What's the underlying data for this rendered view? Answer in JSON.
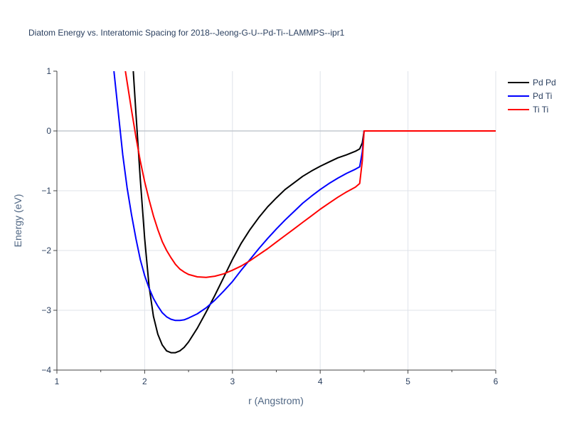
{
  "chart_data": {
    "type": "line",
    "title": "Diatom Energy vs. Interatomic Spacing for 2018--Jeong-G-U--Pd-Ti--LAMMPS--ipr1",
    "xlabel": "r (Angstrom)",
    "ylabel": "Energy (eV)",
    "xlim": [
      1,
      6
    ],
    "ylim": [
      -4,
      1
    ],
    "xticks": [
      1,
      2,
      3,
      4,
      5,
      6
    ],
    "yticks": [
      1,
      0,
      -1,
      -2,
      -3,
      -4
    ],
    "ytick_labels": [
      "1",
      "0",
      "−1",
      "−2",
      "−3",
      "−4"
    ],
    "grid": true,
    "legend_position": "top-right",
    "series": [
      {
        "name": "Pd Pd",
        "color": "#000000",
        "points": [
          [
            1.87,
            1.0
          ],
          [
            1.9,
            0.3
          ],
          [
            1.95,
            -0.8
          ],
          [
            2.0,
            -1.8
          ],
          [
            2.05,
            -2.6
          ],
          [
            2.1,
            -3.1
          ],
          [
            2.15,
            -3.4
          ],
          [
            2.2,
            -3.58
          ],
          [
            2.25,
            -3.68
          ],
          [
            2.3,
            -3.71
          ],
          [
            2.35,
            -3.71
          ],
          [
            2.4,
            -3.68
          ],
          [
            2.45,
            -3.62
          ],
          [
            2.5,
            -3.53
          ],
          [
            2.6,
            -3.3
          ],
          [
            2.7,
            -3.03
          ],
          [
            2.8,
            -2.75
          ],
          [
            2.9,
            -2.45
          ],
          [
            3.0,
            -2.15
          ],
          [
            3.1,
            -1.88
          ],
          [
            3.2,
            -1.65
          ],
          [
            3.3,
            -1.45
          ],
          [
            3.4,
            -1.27
          ],
          [
            3.5,
            -1.12
          ],
          [
            3.6,
            -0.98
          ],
          [
            3.7,
            -0.87
          ],
          [
            3.8,
            -0.76
          ],
          [
            3.9,
            -0.67
          ],
          [
            4.0,
            -0.59
          ],
          [
            4.1,
            -0.52
          ],
          [
            4.2,
            -0.45
          ],
          [
            4.3,
            -0.4
          ],
          [
            4.4,
            -0.34
          ],
          [
            4.45,
            -0.3
          ],
          [
            4.48,
            -0.2
          ],
          [
            4.5,
            0.0
          ],
          [
            6.0,
            0.0
          ]
        ]
      },
      {
        "name": "Pd Ti",
        "color": "#0000ff",
        "points": [
          [
            1.65,
            1.0
          ],
          [
            1.7,
            0.3
          ],
          [
            1.75,
            -0.4
          ],
          [
            1.8,
            -0.95
          ],
          [
            1.85,
            -1.4
          ],
          [
            1.9,
            -1.8
          ],
          [
            1.95,
            -2.15
          ],
          [
            2.0,
            -2.42
          ],
          [
            2.05,
            -2.63
          ],
          [
            2.1,
            -2.8
          ],
          [
            2.15,
            -2.93
          ],
          [
            2.2,
            -3.04
          ],
          [
            2.25,
            -3.11
          ],
          [
            2.3,
            -3.15
          ],
          [
            2.35,
            -3.17
          ],
          [
            2.4,
            -3.17
          ],
          [
            2.45,
            -3.16
          ],
          [
            2.5,
            -3.13
          ],
          [
            2.6,
            -3.06
          ],
          [
            2.7,
            -2.96
          ],
          [
            2.8,
            -2.83
          ],
          [
            2.9,
            -2.68
          ],
          [
            3.0,
            -2.52
          ],
          [
            3.1,
            -2.33
          ],
          [
            3.2,
            -2.15
          ],
          [
            3.3,
            -1.97
          ],
          [
            3.4,
            -1.8
          ],
          [
            3.5,
            -1.64
          ],
          [
            3.6,
            -1.49
          ],
          [
            3.7,
            -1.35
          ],
          [
            3.8,
            -1.21
          ],
          [
            3.9,
            -1.09
          ],
          [
            4.0,
            -0.98
          ],
          [
            4.1,
            -0.88
          ],
          [
            4.2,
            -0.79
          ],
          [
            4.3,
            -0.71
          ],
          [
            4.4,
            -0.64
          ],
          [
            4.45,
            -0.6
          ],
          [
            4.48,
            -0.35
          ],
          [
            4.5,
            0.0
          ],
          [
            6.0,
            0.0
          ]
        ]
      },
      {
        "name": "Ti Ti",
        "color": "#ff0000",
        "points": [
          [
            1.78,
            1.0
          ],
          [
            1.85,
            0.35
          ],
          [
            1.9,
            -0.1
          ],
          [
            1.95,
            -0.5
          ],
          [
            2.0,
            -0.85
          ],
          [
            2.05,
            -1.15
          ],
          [
            2.1,
            -1.42
          ],
          [
            2.15,
            -1.65
          ],
          [
            2.2,
            -1.85
          ],
          [
            2.25,
            -2.0
          ],
          [
            2.3,
            -2.12
          ],
          [
            2.35,
            -2.23
          ],
          [
            2.4,
            -2.31
          ],
          [
            2.45,
            -2.36
          ],
          [
            2.5,
            -2.4
          ],
          [
            2.6,
            -2.44
          ],
          [
            2.7,
            -2.45
          ],
          [
            2.8,
            -2.43
          ],
          [
            2.9,
            -2.39
          ],
          [
            3.0,
            -2.33
          ],
          [
            3.1,
            -2.26
          ],
          [
            3.2,
            -2.17
          ],
          [
            3.3,
            -2.07
          ],
          [
            3.4,
            -1.97
          ],
          [
            3.5,
            -1.86
          ],
          [
            3.6,
            -1.75
          ],
          [
            3.7,
            -1.64
          ],
          [
            3.8,
            -1.53
          ],
          [
            3.9,
            -1.42
          ],
          [
            4.0,
            -1.31
          ],
          [
            4.1,
            -1.21
          ],
          [
            4.2,
            -1.11
          ],
          [
            4.3,
            -1.02
          ],
          [
            4.4,
            -0.94
          ],
          [
            4.45,
            -0.88
          ],
          [
            4.48,
            -0.5
          ],
          [
            4.5,
            0.0
          ],
          [
            6.0,
            0.0
          ]
        ]
      }
    ]
  }
}
